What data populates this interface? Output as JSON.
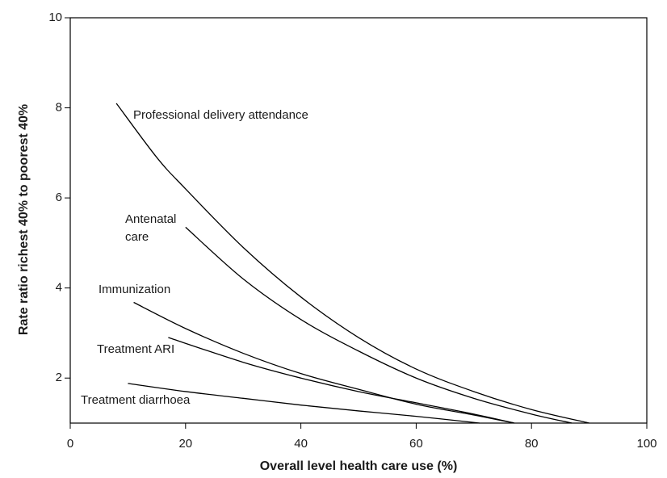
{
  "chart_data": {
    "type": "line",
    "x_label": "Overall level health care use (%)",
    "y_label": "Rate ratio richest 40% to poorest 40%",
    "xlim": [
      0,
      100
    ],
    "xticks": [
      0,
      20,
      40,
      60,
      80,
      100
    ],
    "ylim": [
      1,
      10
    ],
    "yticks": [
      2,
      4,
      6,
      8,
      10
    ],
    "grid": false,
    "series": [
      {
        "name": "Professional delivery attendance",
        "color": "#000000",
        "x": [
          8,
          15,
          20,
          30,
          40,
          50,
          60,
          70,
          80,
          90
        ],
        "values": [
          8.1,
          6.9,
          6.2,
          4.9,
          3.8,
          2.9,
          2.2,
          1.7,
          1.3,
          1.0
        ]
      },
      {
        "name": "Antenatal care",
        "color": "#000000",
        "x": [
          20,
          30,
          40,
          50,
          60,
          70,
          80,
          87
        ],
        "values": [
          5.35,
          4.2,
          3.3,
          2.6,
          2.0,
          1.55,
          1.2,
          1.0
        ]
      },
      {
        "name": "Immunization",
        "color": "#000000",
        "x": [
          11,
          20,
          30,
          40,
          50,
          60,
          70,
          77
        ],
        "values": [
          3.68,
          3.1,
          2.55,
          2.1,
          1.75,
          1.42,
          1.18,
          1.0
        ]
      },
      {
        "name": "Treatment ARI",
        "color": "#000000",
        "x": [
          17,
          30,
          40,
          50,
          60,
          70,
          77
        ],
        "values": [
          2.9,
          2.35,
          2.0,
          1.7,
          1.45,
          1.2,
          1.0
        ]
      },
      {
        "name": "Treatment diarrhoea",
        "color": "#000000",
        "x": [
          10,
          20,
          30,
          40,
          50,
          60,
          71
        ],
        "values": [
          1.88,
          1.7,
          1.55,
          1.4,
          1.27,
          1.15,
          1.0
        ]
      }
    ]
  }
}
